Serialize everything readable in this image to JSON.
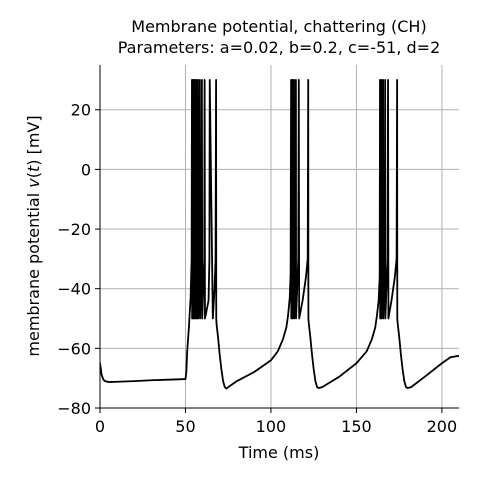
{
  "chart_data": {
    "type": "line",
    "title": "Membrane potential, chattering (CH)",
    "subtitle": "Parameters: a=0.02, b=0.2, c=-51, d=2",
    "xlabel": "Time (ms)",
    "ylabel_parts": [
      "membrane potential ",
      "v",
      "(",
      "t",
      ") [mV]"
    ],
    "xlim": [
      0,
      210
    ],
    "ylim": [
      -80,
      35
    ],
    "xticks": [
      0,
      50,
      100,
      150,
      200
    ],
    "yticks": [
      -80,
      -60,
      -40,
      -20,
      0,
      20
    ],
    "xtick_labels": [
      "0",
      "50",
      "100",
      "150",
      "200"
    ],
    "ytick_labels": [
      "−80",
      "−60",
      "−40",
      "−20",
      "0",
      "20"
    ],
    "grid": true,
    "series": [
      {
        "color": "#000000",
        "x": [
          0,
          1,
          2,
          3,
          5,
          10,
          20,
          30,
          40,
          50,
          50.5,
          51,
          52,
          53,
          53.6,
          53.8,
          53.9,
          54.2,
          54.4,
          54.5,
          54.8,
          55,
          55.1,
          55.4,
          55.6,
          55.8,
          56.2,
          56.4,
          56.6,
          57.1,
          57.3,
          57.5,
          58.2,
          58.4,
          58.6,
          59.4,
          59.6,
          59.8,
          61.0,
          61.2,
          61.4,
          63.5,
          64.0,
          64.2,
          66.0,
          67.0,
          67.6,
          67.9,
          68.0,
          68.2,
          69,
          70,
          71,
          72,
          73,
          74,
          75,
          80,
          90,
          100,
          104,
          107,
          109,
          110,
          111,
          111.5,
          111.8,
          111.9,
          112.4,
          112.6,
          112.7,
          113.3,
          113.5,
          113.6,
          114.4,
          114.6,
          114.7,
          116.0,
          116.3,
          116.5,
          118.5,
          119.5,
          120.5,
          121.5,
          121.8,
          121.9,
          122.2,
          123,
          124,
          125,
          126,
          127,
          128,
          130,
          140,
          150,
          156,
          159,
          161,
          162,
          163,
          163.6,
          163.8,
          163.9,
          164.4,
          164.6,
          164.7,
          165.4,
          165.6,
          165.7,
          166.6,
          166.8,
          166.9,
          168.2,
          168.5,
          168.7,
          170.5,
          171.5,
          172.5,
          173.5,
          173.8,
          173.9,
          174.2,
          175,
          176,
          177,
          178,
          179,
          180,
          182,
          190,
          200,
          205,
          210
        ],
        "y": [
          -65,
          -69,
          -70.5,
          -71,
          -71.3,
          -71.2,
          -71,
          -70.7,
          -70.5,
          -70.3,
          -68,
          -61,
          -53,
          -43,
          -30,
          30,
          -50,
          -30,
          30,
          -50,
          -30,
          30,
          -50,
          -30,
          30,
          -50,
          -30,
          30,
          -50,
          -30,
          30,
          -50,
          -30,
          30,
          -50,
          -30,
          30,
          -50,
          -30,
          30,
          -50,
          -44,
          -30,
          30,
          -50,
          -40,
          -30,
          30,
          -50,
          -52,
          -56,
          -62,
          -67,
          -71,
          -73,
          -73.5,
          -73,
          -71,
          -68,
          -64,
          -61,
          -57,
          -53,
          -49,
          -43,
          -35,
          30,
          -50,
          -30,
          30,
          -50,
          -30,
          30,
          -50,
          -30,
          30,
          -50,
          -30,
          30,
          -50,
          -44,
          -40,
          -36,
          -30,
          30,
          -50,
          -52,
          -56,
          -62,
          -67,
          -71,
          -73,
          -73.3,
          -73,
          -69.5,
          -65,
          -61,
          -57,
          -53,
          -49,
          -44,
          -36,
          30,
          -50,
          -30,
          30,
          -50,
          -30,
          30,
          -50,
          -30,
          30,
          -50,
          -30,
          30,
          -50,
          -44,
          -40,
          -36,
          -30,
          30,
          -50,
          -52,
          -56,
          -62,
          -67,
          -71,
          -73,
          -73.3,
          -73,
          -69.5,
          -65,
          -63,
          -62.5
        ]
      }
    ]
  }
}
